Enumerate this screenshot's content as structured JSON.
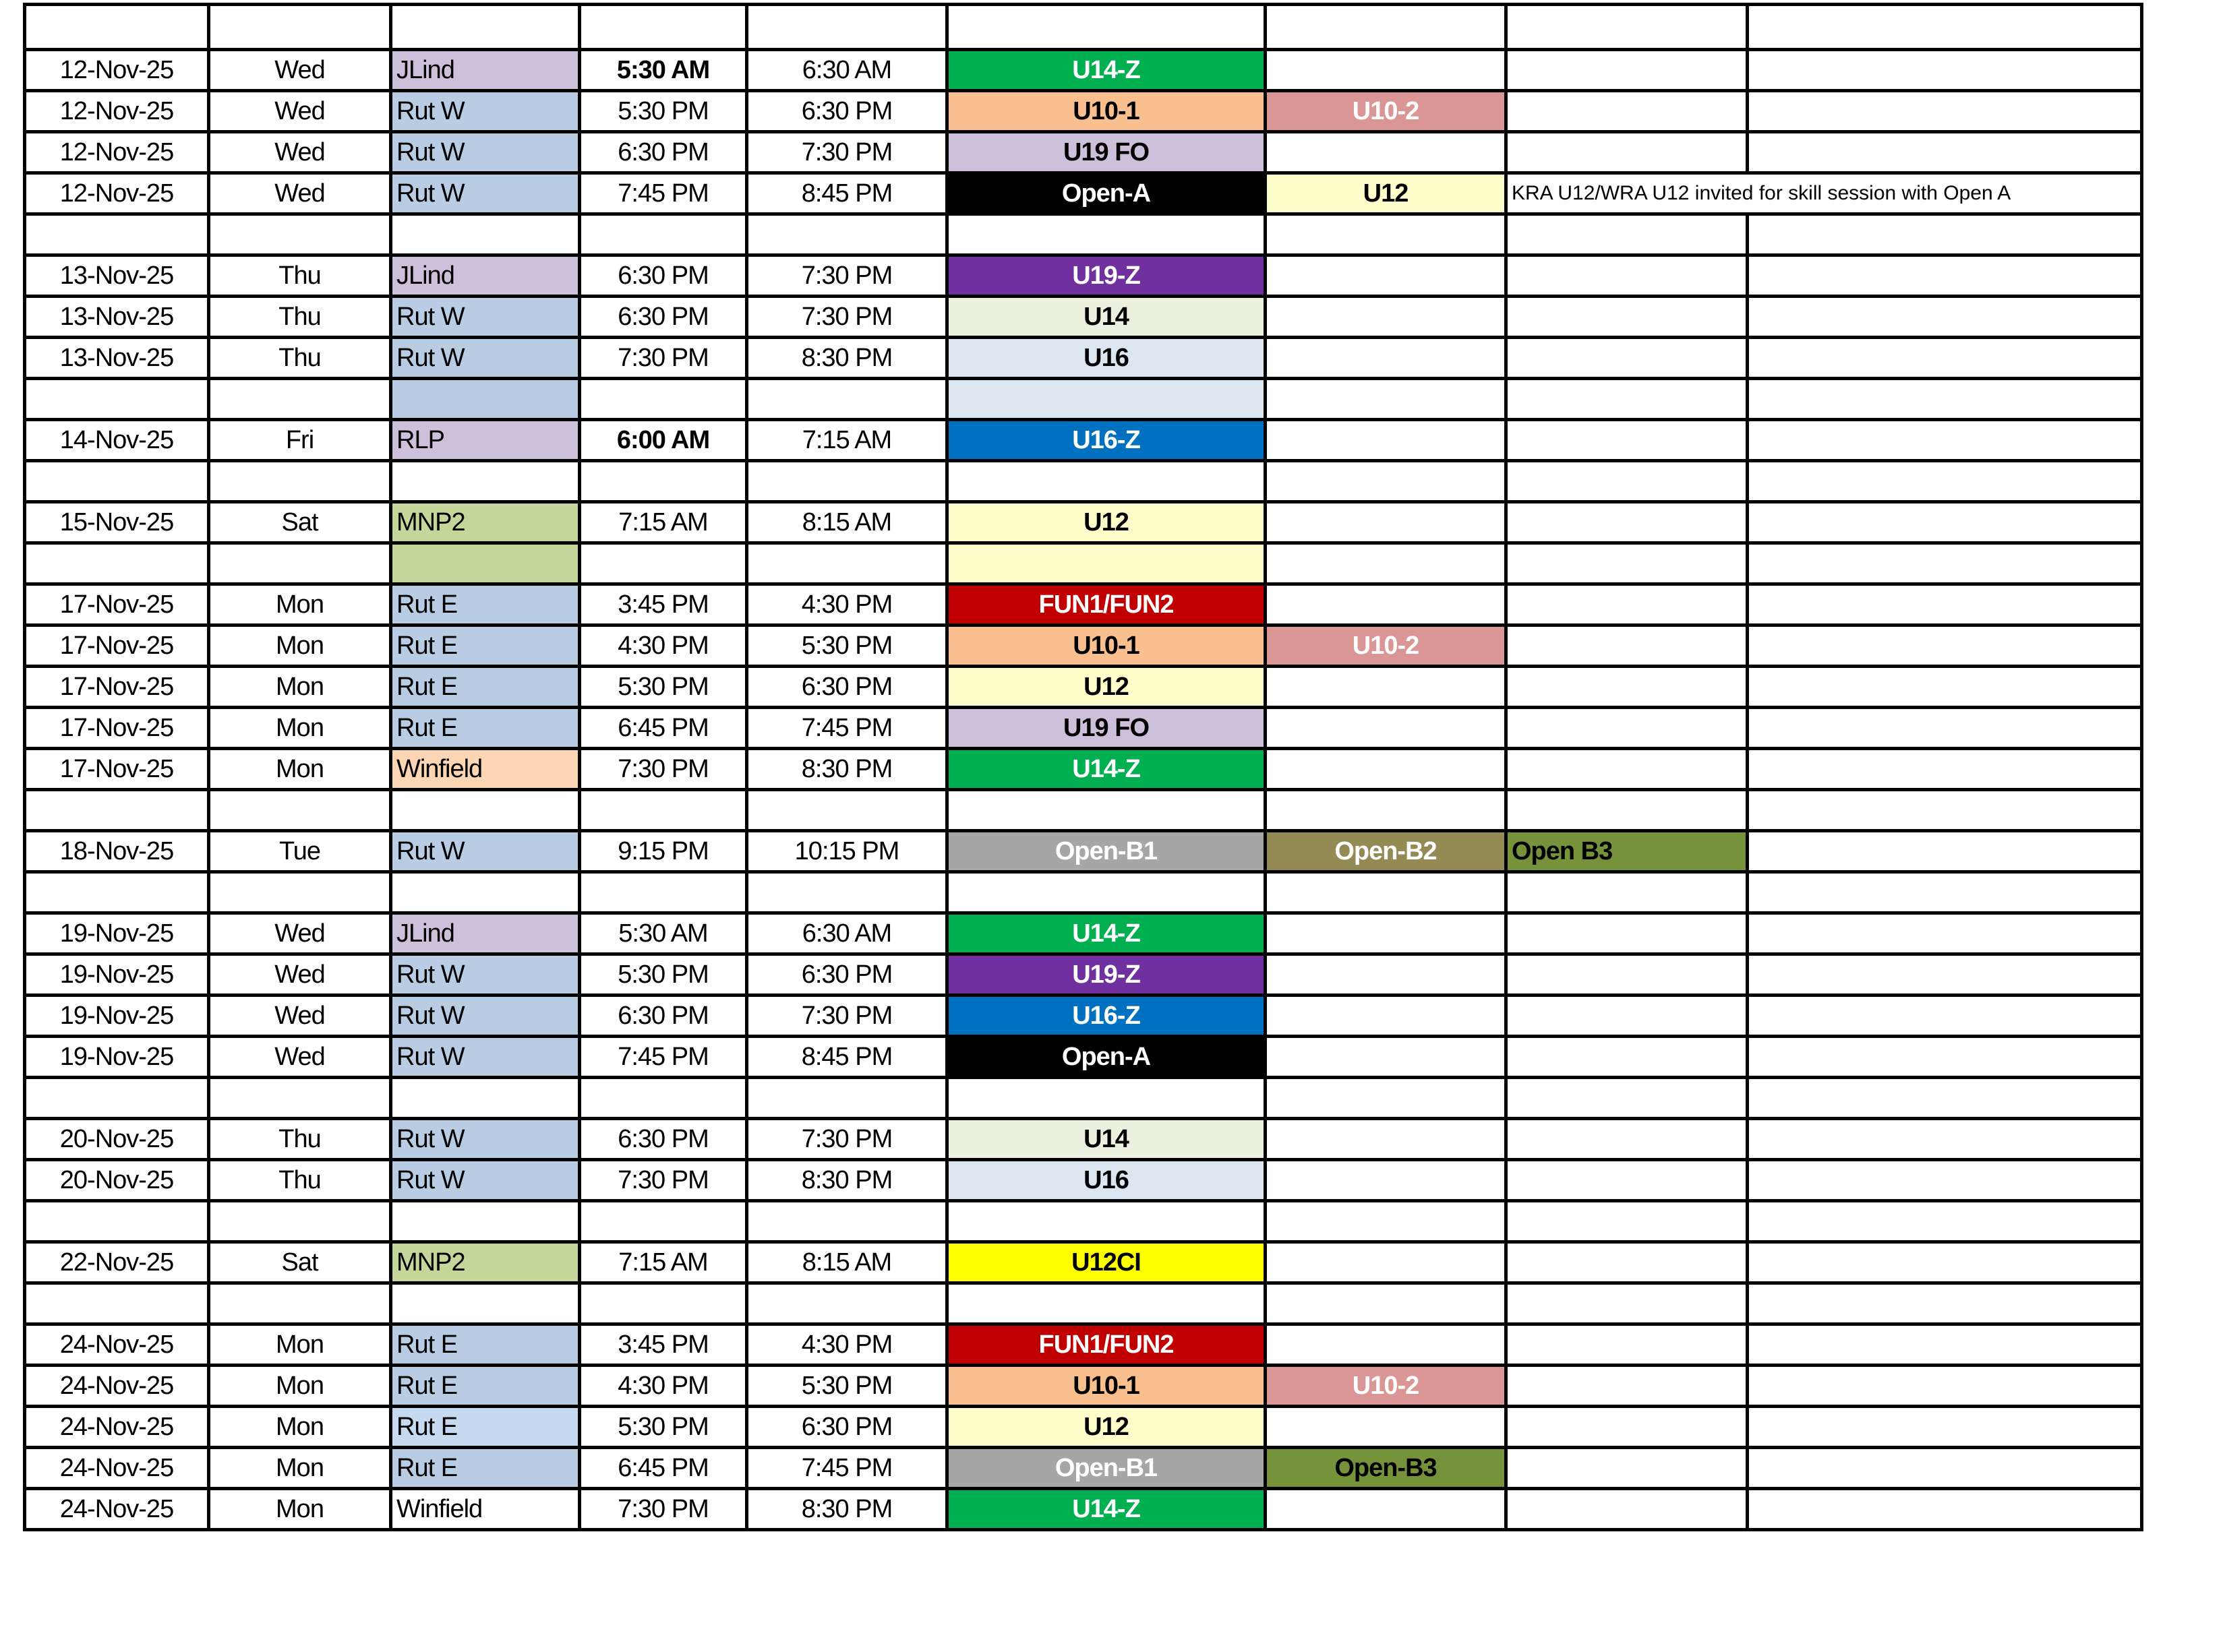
{
  "colors": {
    "location_purple": "#ccc0da",
    "location_blue": "#b8cce4",
    "location_lightblue": "#c5d9f1",
    "location_green": "#c4d79b",
    "location_peach": "#fcd5b4",
    "green": "#00b050",
    "orange": "#fabf8f",
    "rose": "#da9694",
    "lavender": "#ccc0da",
    "black": "#000000",
    "lightyellow": "#ffffcc",
    "purple": "#7030a0",
    "palegreen": "#ebf1de",
    "paleblue": "#dce6f1",
    "blue": "#0070c0",
    "red": "#c00000",
    "gray": "#a6a6a6",
    "olive": "#948a54",
    "moss": "#76933c",
    "yellow": "#ffff00"
  },
  "rows": [
    {
      "date": "12-Nov-25",
      "day": "Wed",
      "loc": "JLind",
      "locc": "location_purple",
      "start": "5:30 AM",
      "sb": true,
      "end": "6:30 AM",
      "t1": "U14-Z",
      "t1c": "green",
      "t1w": true
    },
    {
      "date": "12-Nov-25",
      "day": "Wed",
      "loc": "Rut W",
      "locc": "location_blue",
      "start": "5:30 PM",
      "end": "6:30 PM",
      "t1": "U10-1",
      "t1c": "orange",
      "t2": "U10-2",
      "t2c": "rose",
      "t2w": true
    },
    {
      "date": "12-Nov-25",
      "day": "Wed",
      "loc": "Rut W",
      "locc": "location_blue",
      "start": "6:30 PM",
      "end": "7:30 PM",
      "t1": "U19 FO",
      "t1c": "lavender"
    },
    {
      "date": "12-Nov-25",
      "day": "Wed",
      "loc": "Rut W",
      "locc": "location_blue",
      "start": "7:45 PM",
      "end": "8:45 PM",
      "t1": "Open-A",
      "t1c": "black",
      "t1w": true,
      "t2": "U12",
      "t2c": "lightyellow",
      "note": "KRA U12/WRA U12 invited for skill session with Open A"
    },
    {},
    {
      "date": "13-Nov-25",
      "day": "Thu",
      "loc": "JLind",
      "locc": "location_purple",
      "start": "6:30 PM",
      "end": "7:30 PM",
      "t1": "U19-Z",
      "t1c": "purple",
      "t1w": true
    },
    {
      "date": "13-Nov-25",
      "day": "Thu",
      "loc": "Rut W",
      "locc": "location_blue",
      "start": "6:30 PM",
      "end": "7:30 PM",
      "t1": "U14",
      "t1c": "palegreen"
    },
    {
      "date": "13-Nov-25",
      "day": "Thu",
      "loc": "Rut W",
      "locc": "location_blue",
      "start": "7:30 PM",
      "end": "8:30 PM",
      "t1": "U16",
      "t1c": "paleblue"
    },
    {
      "locc": "location_blue",
      "t1c": "paleblue"
    },
    {
      "date": "14-Nov-25",
      "day": "Fri",
      "loc": "RLP",
      "locc": "location_purple",
      "start": "6:00 AM",
      "sb": true,
      "end": "7:15 AM",
      "t1": "U16-Z",
      "t1c": "blue",
      "t1w": true
    },
    {},
    {
      "date": "15-Nov-25",
      "day": "Sat",
      "loc": "MNP2",
      "locc": "location_green",
      "start": "7:15 AM",
      "end": "8:15 AM",
      "t1": "U12",
      "t1c": "lightyellow"
    },
    {
      "locc": "location_green",
      "t1c": "lightyellow"
    },
    {
      "date": "17-Nov-25",
      "day": "Mon",
      "loc": "Rut E",
      "locc": "location_blue",
      "start": "3:45 PM",
      "end": "4:30 PM",
      "t1": "FUN1/FUN2",
      "t1c": "red",
      "t1w": true
    },
    {
      "date": "17-Nov-25",
      "day": "Mon",
      "loc": "Rut E",
      "locc": "location_blue",
      "start": "4:30 PM",
      "end": "5:30 PM",
      "t1": "U10-1",
      "t1c": "orange",
      "t2": "U10-2",
      "t2c": "rose",
      "t2w": true
    },
    {
      "date": "17-Nov-25",
      "day": "Mon",
      "loc": "Rut E",
      "locc": "location_blue",
      "start": "5:30 PM",
      "end": "6:30 PM",
      "t1": "U12",
      "t1c": "lightyellow"
    },
    {
      "date": "17-Nov-25",
      "day": "Mon",
      "loc": "Rut E",
      "locc": "location_blue",
      "start": "6:45 PM",
      "end": "7:45 PM",
      "t1": "U19 FO",
      "t1c": "lavender"
    },
    {
      "date": "17-Nov-25",
      "day": "Mon",
      "loc": "Winfield",
      "locc": "location_peach",
      "start": "7:30 PM",
      "end": "8:30 PM",
      "t1": "U14-Z",
      "t1c": "green",
      "t1w": true
    },
    {},
    {
      "date": "18-Nov-25",
      "day": "Tue",
      "loc": "Rut W",
      "locc": "location_blue",
      "start": "9:15 PM",
      "end": "10:15 PM",
      "t1": "Open-B1",
      "t1c": "gray",
      "t1w": true,
      "t2": "Open-B2",
      "t2c": "olive",
      "t2w": true,
      "t3": "Open B3",
      "t3c": "moss"
    },
    {},
    {
      "date": "19-Nov-25",
      "day": "Wed",
      "loc": "JLind",
      "locc": "location_purple",
      "start": "5:30 AM",
      "end": "6:30 AM",
      "t1": "U14-Z",
      "t1c": "green",
      "t1w": true
    },
    {
      "date": "19-Nov-25",
      "day": "Wed",
      "loc": "Rut W",
      "locc": "location_blue",
      "start": "5:30 PM",
      "end": "6:30 PM",
      "t1": "U19-Z",
      "t1c": "purple",
      "t1w": true
    },
    {
      "date": "19-Nov-25",
      "day": "Wed",
      "loc": "Rut W",
      "locc": "location_blue",
      "start": "6:30 PM",
      "end": "7:30 PM",
      "t1": "U16-Z",
      "t1c": "blue",
      "t1w": true
    },
    {
      "date": "19-Nov-25",
      "day": "Wed",
      "loc": "Rut W",
      "locc": "location_blue",
      "start": "7:45 PM",
      "end": "8:45 PM",
      "t1": "Open-A",
      "t1c": "black",
      "t1w": true
    },
    {},
    {
      "date": "20-Nov-25",
      "day": "Thu",
      "loc": "Rut W",
      "locc": "location_blue",
      "start": "6:30 PM",
      "end": "7:30 PM",
      "t1": "U14",
      "t1c": "palegreen"
    },
    {
      "date": "20-Nov-25",
      "day": "Thu",
      "loc": "Rut W",
      "locc": "location_blue",
      "start": "7:30 PM",
      "end": "8:30 PM",
      "t1": "U16",
      "t1c": "paleblue"
    },
    {},
    {
      "date": "22-Nov-25",
      "day": "Sat",
      "loc": "MNP2",
      "locc": "location_green",
      "start": "7:15 AM",
      "end": "8:15 AM",
      "t1": "U12CI",
      "t1c": "yellow"
    },
    {},
    {
      "date": "24-Nov-25",
      "day": "Mon",
      "loc": "Rut E",
      "locc": "location_blue",
      "start": "3:45 PM",
      "end": "4:30 PM",
      "t1": "FUN1/FUN2",
      "t1c": "red",
      "t1w": true
    },
    {
      "date": "24-Nov-25",
      "day": "Mon",
      "loc": "Rut E",
      "locc": "location_blue",
      "start": "4:30 PM",
      "end": "5:30 PM",
      "t1": "U10-1",
      "t1c": "orange",
      "t2": "U10-2",
      "t2c": "rose",
      "t2w": true
    },
    {
      "date": "24-Nov-25",
      "day": "Mon",
      "loc": "Rut E",
      "locc": "location_lightblue",
      "start": "5:30 PM",
      "end": "6:30 PM",
      "t1": "U12",
      "t1c": "lightyellow"
    },
    {
      "date": "24-Nov-25",
      "day": "Mon",
      "loc": "Rut E",
      "locc": "location_blue",
      "start": "6:45 PM",
      "end": "7:45 PM",
      "t1": "Open-B1",
      "t1c": "gray",
      "t1w": true,
      "t2": "Open-B3",
      "t2c": "moss"
    },
    {
      "date": "24-Nov-25",
      "day": "Mon",
      "loc": "Winfield",
      "start": "7:30 PM",
      "end": "8:30 PM",
      "t1": "U14-Z",
      "t1c": "green",
      "t1w": true
    }
  ]
}
